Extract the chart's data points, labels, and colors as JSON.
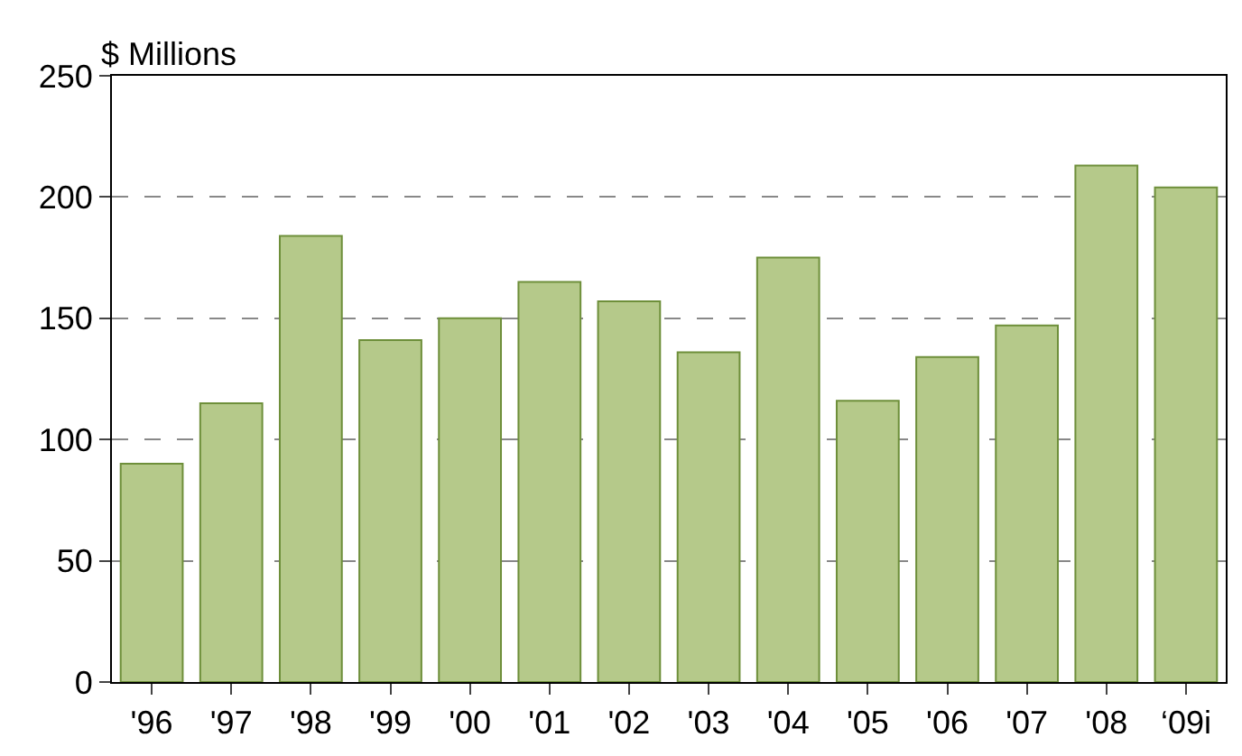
{
  "chart_data": {
    "type": "bar",
    "ylabel": "$ Millions",
    "categories": [
      "'96",
      "'97",
      "'98",
      "'99",
      "'00",
      "'01",
      "'02",
      "'03",
      "'04",
      "'05",
      "'06",
      "'07",
      "'08",
      "‘09i"
    ],
    "values": [
      90,
      115,
      184,
      141,
      150,
      165,
      157,
      136,
      175,
      116,
      134,
      147,
      213,
      204
    ],
    "color": "#b5c98a",
    "ylim": [
      0,
      250
    ],
    "yticks": [
      0,
      50,
      100,
      150,
      200,
      250
    ],
    "grid": "y"
  }
}
